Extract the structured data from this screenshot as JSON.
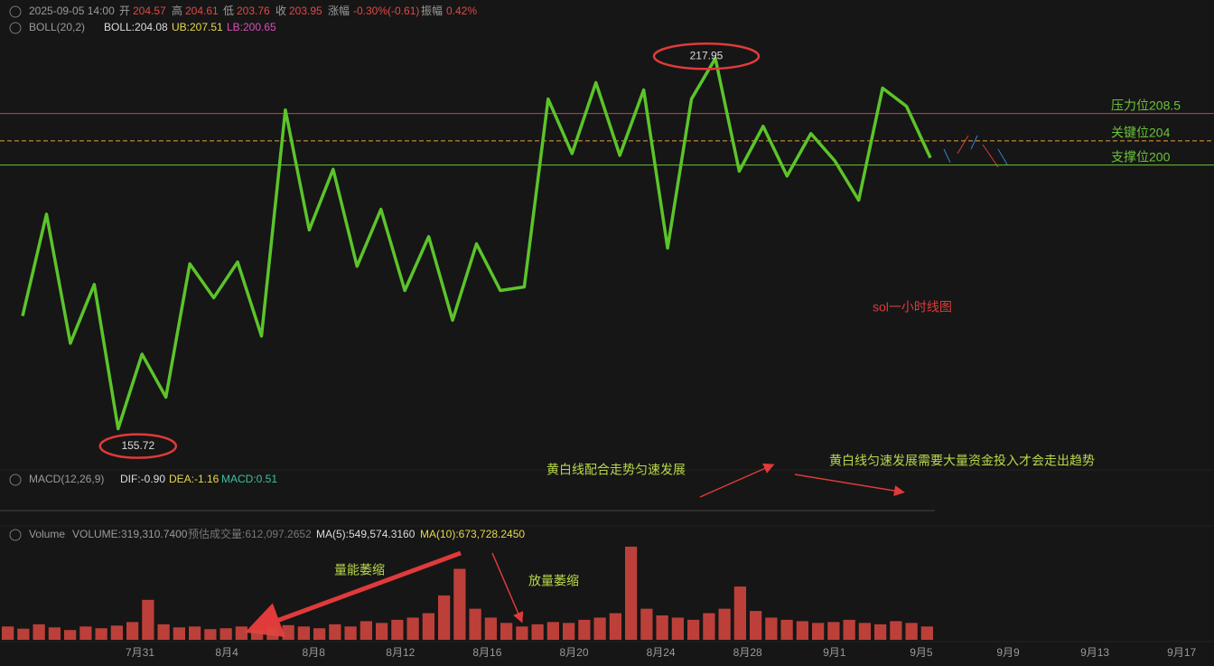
{
  "header": {
    "datetime": "2025-09-05 14:00",
    "open_label": "开",
    "open": "204.57",
    "high_label": "高",
    "high": "204.61",
    "low_label": "低",
    "low": "203.76",
    "close_label": "收",
    "close": "203.95",
    "change_label": "涨幅",
    "change": "-0.30%(-0.61)",
    "amplitude_label": "振幅",
    "amplitude": "0.42%"
  },
  "boll": {
    "name": "BOLL(20,2)",
    "mid": "BOLL:204.08",
    "ub": "UB:207.51",
    "lb": "LB:200.65"
  },
  "macd": {
    "name": "MACD(12,26,9)",
    "dif": "DIF:-0.90",
    "dea": "DEA:-1.16",
    "macd": "MACD:0.51"
  },
  "volume": {
    "name": "Volume",
    "volume": "VOLUME:319,310.7400",
    "estimate": "预估成交量:612,097.2652",
    "ma5": "MA(5):549,574.3160",
    "ma10": "MA(10):673,728.2450",
    "color": "#d9483f",
    "ylim": [
      0,
      2200000
    ],
    "values": [
      300000,
      250000,
      350000,
      280000,
      220000,
      300000,
      260000,
      320000,
      400000,
      900000,
      350000,
      280000,
      300000,
      240000,
      260000,
      300000,
      220000,
      280000,
      330000,
      300000,
      260000,
      350000,
      300000,
      420000,
      380000,
      450000,
      500000,
      600000,
      1000000,
      1600000,
      700000,
      500000,
      380000,
      300000,
      350000,
      400000,
      380000,
      450000,
      500000,
      600000,
      2100000,
      700000,
      550000,
      500000,
      450000,
      600000,
      700000,
      1200000,
      650000,
      500000,
      450000,
      420000,
      380000,
      400000,
      450000,
      380000,
      350000,
      420000,
      380000,
      300000
    ]
  },
  "price": {
    "color": "#5cc42a",
    "ylim": [
      150,
      225
    ],
    "values": [
      175.1,
      191.9,
      170.6,
      180.3,
      156.5,
      168.8,
      161.7,
      183.7,
      178.1,
      184.0,
      171.8,
      209.1,
      189.3,
      199.3,
      183.3,
      192.7,
      179.3,
      188.2,
      174.4,
      187.0,
      179.3,
      179.9,
      210.9,
      201.9,
      213.6,
      201.6,
      212.4,
      186.3,
      210.9,
      217.6,
      199.0,
      206.4,
      198.2,
      205.2,
      200.7,
      194.2,
      212.7,
      209.7,
      201.2
    ],
    "levels": [
      {
        "value": 208.5,
        "label": "压力位208.5",
        "color": "#e03a3a"
      },
      {
        "value": 204,
        "label": "关键位204",
        "color": "#e8a23a"
      },
      {
        "value": 200,
        "label": "支撑位200",
        "color": "#6cc33a"
      }
    ],
    "high": 217.95,
    "low": 155.72
  },
  "annotations": {
    "chart_title": "sol一小时线图",
    "macd_note_1": "黄白线配合走势匀速发展",
    "macd_note_2": "黄白线匀速发展需要大量资金投入才会走出趋势",
    "volume_note_1": "量能萎缩",
    "volume_note_2": "放量萎缩"
  },
  "x_axis": [
    "7月31",
    "8月4",
    "8月8",
    "8月12",
    "8月16",
    "8月20",
    "8月24",
    "8月28",
    "9月1",
    "9月5",
    "9月9",
    "9月13",
    "9月17"
  ]
}
